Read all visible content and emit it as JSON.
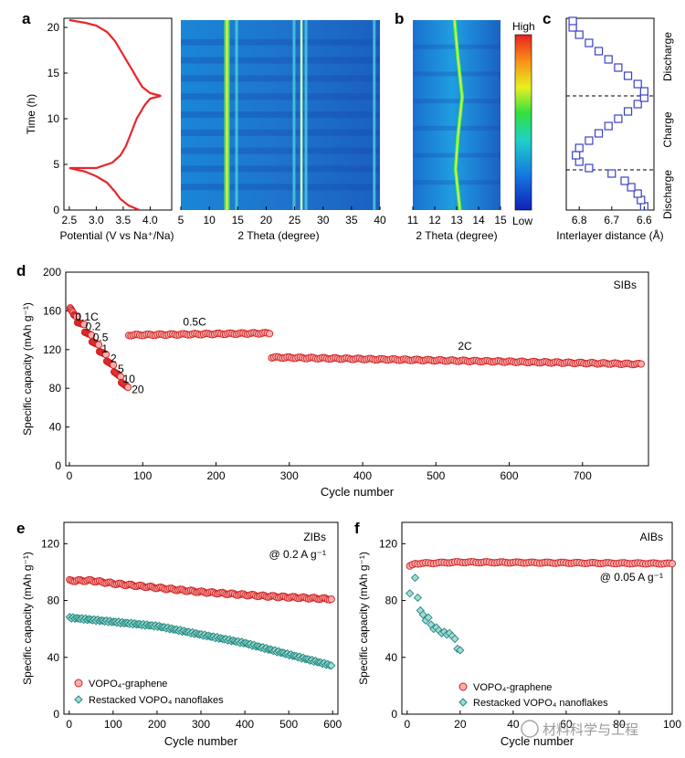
{
  "panel_labels": {
    "a": "a",
    "b": "b",
    "c": "c",
    "d": "d",
    "e": "e",
    "f": "f"
  },
  "colors": {
    "red": "#e8262a",
    "teal": "#1f8a82",
    "blue_marker": "#3b3fc4"
  },
  "chart_data": [
    {
      "id": "a-voltage",
      "type": "line",
      "xlabel": "Potential (V vs Na⁺/Na)",
      "ylabel": "Time (h)",
      "xlim": [
        2.4,
        4.4
      ],
      "ylim": [
        0,
        21
      ],
      "xticks": [
        "2.5",
        "3.0",
        "3.5",
        "4.0"
      ],
      "yticks": [
        "0",
        "5",
        "10",
        "15",
        "20"
      ],
      "series": [
        {
          "x": [
            3.8,
            3.6,
            3.45,
            3.35,
            3.2,
            3.0,
            2.8,
            2.5,
            2.6,
            3.0,
            3.3,
            3.45,
            3.55,
            3.65,
            3.75,
            3.9,
            4.0,
            4.2,
            4.0,
            3.85,
            3.75,
            3.65,
            3.55,
            3.45,
            3.35,
            3.2,
            3.0,
            2.8,
            2.6,
            2.5
          ],
          "y": [
            0,
            0.5,
            1.2,
            2.0,
            3.0,
            3.7,
            4.2,
            4.6,
            4.6,
            4.6,
            5.2,
            6.0,
            7.0,
            8.5,
            10.0,
            11.5,
            12.2,
            12.5,
            12.8,
            13.5,
            14.5,
            15.5,
            16.5,
            17.5,
            18.5,
            19.5,
            20.2,
            20.5,
            20.7,
            20.8
          ]
        }
      ]
    },
    {
      "id": "a-contour",
      "type": "heatmap",
      "xlabel": "2 Theta (degree)",
      "xlim": [
        5,
        40
      ],
      "xticks": [
        "5",
        "10",
        "15",
        "20",
        "25",
        "30",
        "35",
        "40"
      ],
      "peaks_deg": [
        13.1,
        14.8,
        24.9,
        26.2,
        27.0,
        39.0
      ]
    },
    {
      "id": "b-contour",
      "type": "heatmap",
      "xlabel": "2 Theta (degree)",
      "xlim": [
        11,
        15
      ],
      "xticks": [
        "11",
        "12",
        "13",
        "14",
        "15"
      ],
      "peak_vs_time": {
        "time_h": [
          0,
          4.5,
          8,
          12.5,
          17,
          21
        ],
        "theta": [
          13.15,
          12.95,
          13.05,
          13.25,
          13.05,
          12.9
        ]
      },
      "colorbar": {
        "high": "High",
        "low": "Low"
      }
    },
    {
      "id": "c-interlayer",
      "type": "scatter",
      "xlabel": "Interlayer distance (Å)",
      "xlim": [
        6.84,
        6.57
      ],
      "ylim": [
        0,
        21
      ],
      "xticks": [
        "6.8",
        "6.7",
        "6.6"
      ],
      "region_labels": [
        "Discharge",
        "Charge",
        "Discharge"
      ],
      "hlines_h": [
        4.4,
        12.5
      ],
      "series": [
        {
          "x": [
            6.6,
            6.61,
            6.62,
            6.64,
            6.66,
            6.7,
            6.77,
            6.8,
            6.81,
            6.8,
            6.77,
            6.74,
            6.71,
            6.68,
            6.65,
            6.62,
            6.6,
            6.6,
            6.62,
            6.65,
            6.68,
            6.71,
            6.74,
            6.77,
            6.8,
            6.82,
            6.82
          ],
          "y": [
            0.4,
            1.1,
            1.8,
            2.5,
            3.2,
            4.0,
            4.6,
            5.3,
            6.0,
            6.8,
            7.6,
            8.4,
            9.2,
            10.0,
            10.8,
            11.6,
            12.3,
            13.0,
            13.8,
            14.7,
            15.6,
            16.5,
            17.4,
            18.3,
            19.2,
            20.0,
            20.7
          ]
        }
      ]
    },
    {
      "id": "d-rate",
      "type": "scatter",
      "xlabel": "Cycle number",
      "ylabel": "Specific capacity (mAh g⁻¹)",
      "xlim": [
        -5,
        790
      ],
      "ylim": [
        0,
        200
      ],
      "xticks": [
        "0",
        "100",
        "200",
        "300",
        "400",
        "500",
        "600",
        "700"
      ],
      "yticks": [
        "0",
        "40",
        "80",
        "120",
        "160",
        "200"
      ],
      "annotation": "SIBs",
      "rate_labels": [
        {
          "text": "0.1C",
          "x": 8,
          "y": 150
        },
        {
          "text": "0.2",
          "x": 22,
          "y": 140
        },
        {
          "text": "0.5",
          "x": 32,
          "y": 129
        },
        {
          "text": "1",
          "x": 44,
          "y": 117
        },
        {
          "text": "2",
          "x": 56,
          "y": 107
        },
        {
          "text": "5",
          "x": 66,
          "y": 96
        },
        {
          "text": "10",
          "x": 73,
          "y": 86
        },
        {
          "text": "20",
          "x": 85,
          "y": 75
        },
        {
          "text": "0.5C",
          "x": 155,
          "y": 145
        },
        {
          "text": "2C",
          "x": 530,
          "y": 120
        }
      ],
      "segments": [
        {
          "from": 1,
          "to": 5,
          "start": 163,
          "end": 158
        },
        {
          "from": 6,
          "to": 10,
          "start": 156,
          "end": 154
        },
        {
          "from": 11,
          "to": 20,
          "start": 148,
          "end": 146
        },
        {
          "from": 21,
          "to": 30,
          "start": 138,
          "end": 135
        },
        {
          "from": 31,
          "to": 40,
          "start": 128,
          "end": 125
        },
        {
          "from": 41,
          "to": 50,
          "start": 118,
          "end": 115
        },
        {
          "from": 51,
          "to": 60,
          "start": 108,
          "end": 104
        },
        {
          "from": 61,
          "to": 70,
          "start": 97,
          "end": 92
        },
        {
          "from": 71,
          "to": 80,
          "start": 86,
          "end": 81
        },
        {
          "from": 81,
          "to": 275,
          "start": 135,
          "end": 137
        },
        {
          "from": 276,
          "to": 780,
          "start": 112,
          "end": 105
        }
      ]
    },
    {
      "id": "e-zibs",
      "type": "scatter",
      "xlabel": "Cycle number",
      "ylabel": "Specific capacity (mAh g⁻¹)",
      "xlim": [
        -12,
        612
      ],
      "ylim": [
        0,
        135
      ],
      "xticks": [
        "0",
        "100",
        "200",
        "300",
        "400",
        "500",
        "600"
      ],
      "yticks": [
        "0",
        "40",
        "80",
        "120"
      ],
      "annotations": [
        "ZIBs",
        "@ 0.2 A g⁻¹"
      ],
      "series": [
        {
          "name": "VOPO₄-graphene",
          "x_range": [
            1,
            600
          ],
          "values": {
            "0": 94,
            "50": 94,
            "100": 92,
            "300": 86,
            "450": 83,
            "600": 81
          }
        },
        {
          "name": "Restacked VOPO₄ nanoflakes",
          "x_range": [
            1,
            600
          ],
          "values": {
            "0": 68,
            "200": 62,
            "400": 50,
            "600": 34
          }
        }
      ]
    },
    {
      "id": "f-aibs",
      "type": "scatter",
      "xlabel": "Cycle number",
      "ylabel": "Specific capacity (mAh g⁻¹)",
      "xlim": [
        -2,
        100
      ],
      "ylim": [
        0,
        135
      ],
      "xticks": [
        "0",
        "20",
        "40",
        "60",
        "80",
        "100"
      ],
      "yticks": [
        "0",
        "40",
        "80",
        "120"
      ],
      "annotations": [
        "AIBs",
        "@ 0.05 A g⁻¹"
      ],
      "series": [
        {
          "name": "VOPO₄-graphene",
          "x_range": [
            1,
            100
          ],
          "values": {
            "1": 104,
            "3": 106,
            "20": 107,
            "100": 106
          }
        },
        {
          "name": "Restacked VOPO₄ nanoflakes",
          "x": [
            1,
            3,
            4,
            5,
            6,
            7,
            8,
            9,
            10,
            11,
            12,
            13,
            14,
            15,
            16,
            17,
            18,
            19,
            20
          ],
          "y": [
            85,
            96,
            82,
            73,
            70,
            66,
            68,
            63,
            60,
            61,
            59,
            57,
            58,
            56,
            57,
            55,
            53,
            46,
            45
          ]
        }
      ]
    }
  ],
  "watermark": "材料科学与工程"
}
